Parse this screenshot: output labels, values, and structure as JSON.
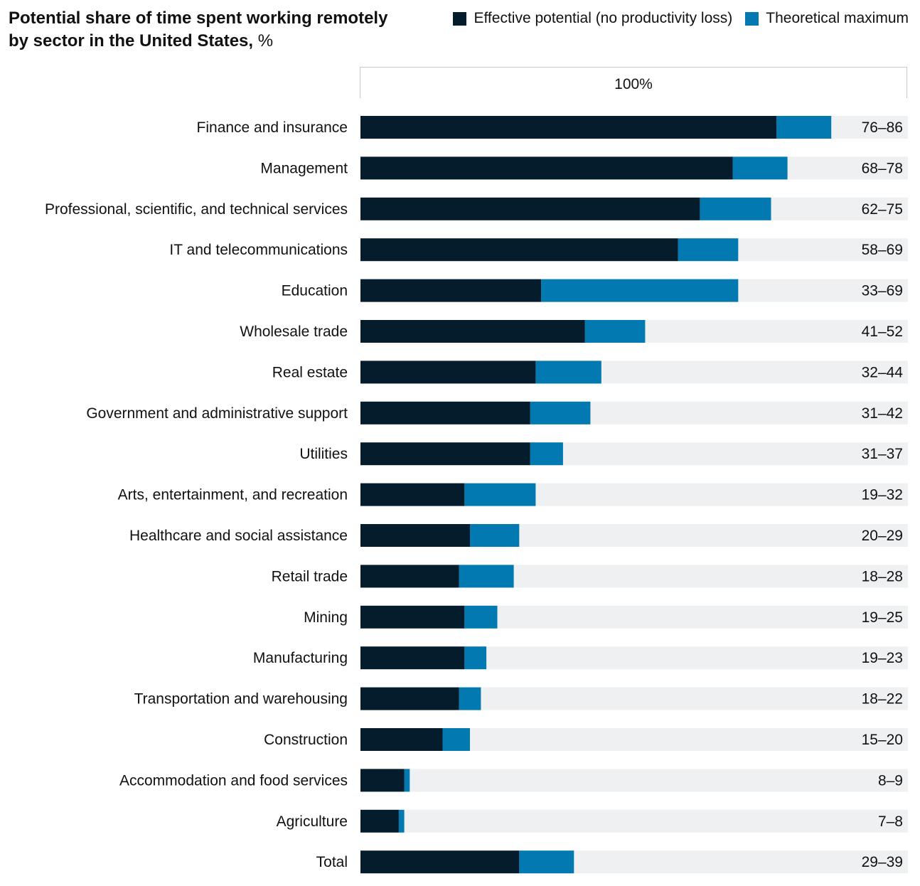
{
  "chart_data": {
    "type": "bar",
    "title": "Potential share of time spent working remotely by sector in the United States,",
    "title_unit": "%",
    "scale_label": "100%",
    "xlim": [
      0,
      100
    ],
    "legend_placement": "top-right",
    "series": [
      {
        "name": "Effective potential (no productivity loss)",
        "color": "#051c2c",
        "values": [
          76,
          68,
          62,
          58,
          33,
          41,
          32,
          31,
          31,
          19,
          20,
          18,
          19,
          19,
          18,
          15,
          8,
          7,
          29
        ]
      },
      {
        "name": "Theoretical maximum",
        "color": "#027ab1",
        "values": [
          86,
          78,
          75,
          69,
          69,
          52,
          44,
          42,
          37,
          32,
          29,
          28,
          25,
          23,
          22,
          20,
          9,
          8,
          39
        ]
      }
    ],
    "background_color": "#eef0f2",
    "categories": [
      "Finance and insurance",
      "Management",
      "Professional, scientific, and technical services",
      "IT and telecommunications",
      "Education",
      "Wholesale trade",
      "Real estate",
      "Government and administrative support",
      "Utilities",
      "Arts, entertainment, and recreation",
      "Healthcare and social assistance",
      "Retail trade",
      "Mining",
      "Manufacturing",
      "Transportation and warehousing",
      "Construction",
      "Accommodation and food services",
      "Agriculture",
      "Total"
    ],
    "range_labels": [
      "76–86",
      "68–78",
      "62–75",
      "58–69",
      "33–69",
      "41–52",
      "32–44",
      "31–42",
      "31–37",
      "19–32",
      "20–29",
      "18–28",
      "19–25",
      "19–23",
      "18–22",
      "15–20",
      "8–9",
      "7–8",
      "29–39"
    ]
  }
}
